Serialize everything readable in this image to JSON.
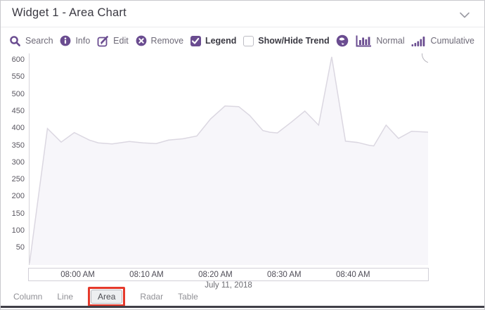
{
  "titlebar": {
    "title": "Widget 1 - Area Chart"
  },
  "toolbar": {
    "search_label": "Search",
    "info_label": "Info",
    "edit_label": "Edit",
    "remove_label": "Remove",
    "legend": {
      "label": "Legend",
      "checked": true
    },
    "trend": {
      "label": "Show/Hide Trend",
      "checked": false
    },
    "normal_label": "Normal",
    "cumulative_label": "Cumulative"
  },
  "icons": {
    "search": "magnifier-icon",
    "info": "info-circle-icon",
    "edit": "pencil-square-icon",
    "remove": "x-circle-icon",
    "globe": "globe-icon",
    "normal": "bar-chart-axis-icon",
    "cumulative": "ascending-bars-icon",
    "collapse": "chevron-down-icon",
    "context": "chevron-down-circle-icon"
  },
  "colors": {
    "accent": "#6a4c90",
    "annotation": "#e5392b",
    "area_fill": "#f7f6fa",
    "area_stroke": "#dbd7e1"
  },
  "chart_data": {
    "type": "area",
    "title": "",
    "xlabel": "July 11, 2018",
    "ylabel": "",
    "x_axis": {
      "labels": [
        "08:00 AM",
        "08:10 AM",
        "08:20 AM",
        "08:30 AM",
        "08:40 AM"
      ],
      "label_minutes": [
        7,
        17,
        27,
        37,
        47
      ],
      "range_minutes": [
        0,
        58
      ],
      "date_label": "July 11, 2018"
    },
    "y_axis": {
      "ticks": [
        50,
        100,
        150,
        200,
        250,
        300,
        350,
        400,
        450,
        500,
        550,
        600
      ],
      "range": [
        0,
        620
      ]
    },
    "grid": false,
    "legend_position": "none",
    "series": [
      {
        "points": [
          [
            0,
            5
          ],
          [
            2.6,
            400
          ],
          [
            4.6,
            360
          ],
          [
            6.5,
            388
          ],
          [
            8.7,
            366
          ],
          [
            10,
            358
          ],
          [
            12,
            355
          ],
          [
            14.5,
            362
          ],
          [
            16.5,
            358
          ],
          [
            18.4,
            356
          ],
          [
            20.2,
            366
          ],
          [
            22.3,
            370
          ],
          [
            24.3,
            378
          ],
          [
            26.3,
            428
          ],
          [
            28.4,
            466
          ],
          [
            30.4,
            464
          ],
          [
            32,
            438
          ],
          [
            33.9,
            394
          ],
          [
            34.9,
            389
          ],
          [
            36,
            387
          ],
          [
            38,
            418
          ],
          [
            40,
            451
          ],
          [
            42,
            410
          ],
          [
            43.9,
            610
          ],
          [
            45.9,
            363
          ],
          [
            47.7,
            359
          ],
          [
            49.3,
            351
          ],
          [
            50,
            349
          ],
          [
            51.8,
            410
          ],
          [
            53.6,
            371
          ],
          [
            55.5,
            392
          ],
          [
            58,
            389
          ]
        ]
      }
    ]
  },
  "footer": {
    "tabs": [
      {
        "label": "Column",
        "selected": false
      },
      {
        "label": "Line",
        "selected": false
      },
      {
        "label": "Area",
        "selected": true,
        "annotated": true
      },
      {
        "label": "Radar",
        "selected": false
      },
      {
        "label": "Table",
        "selected": false
      }
    ]
  }
}
